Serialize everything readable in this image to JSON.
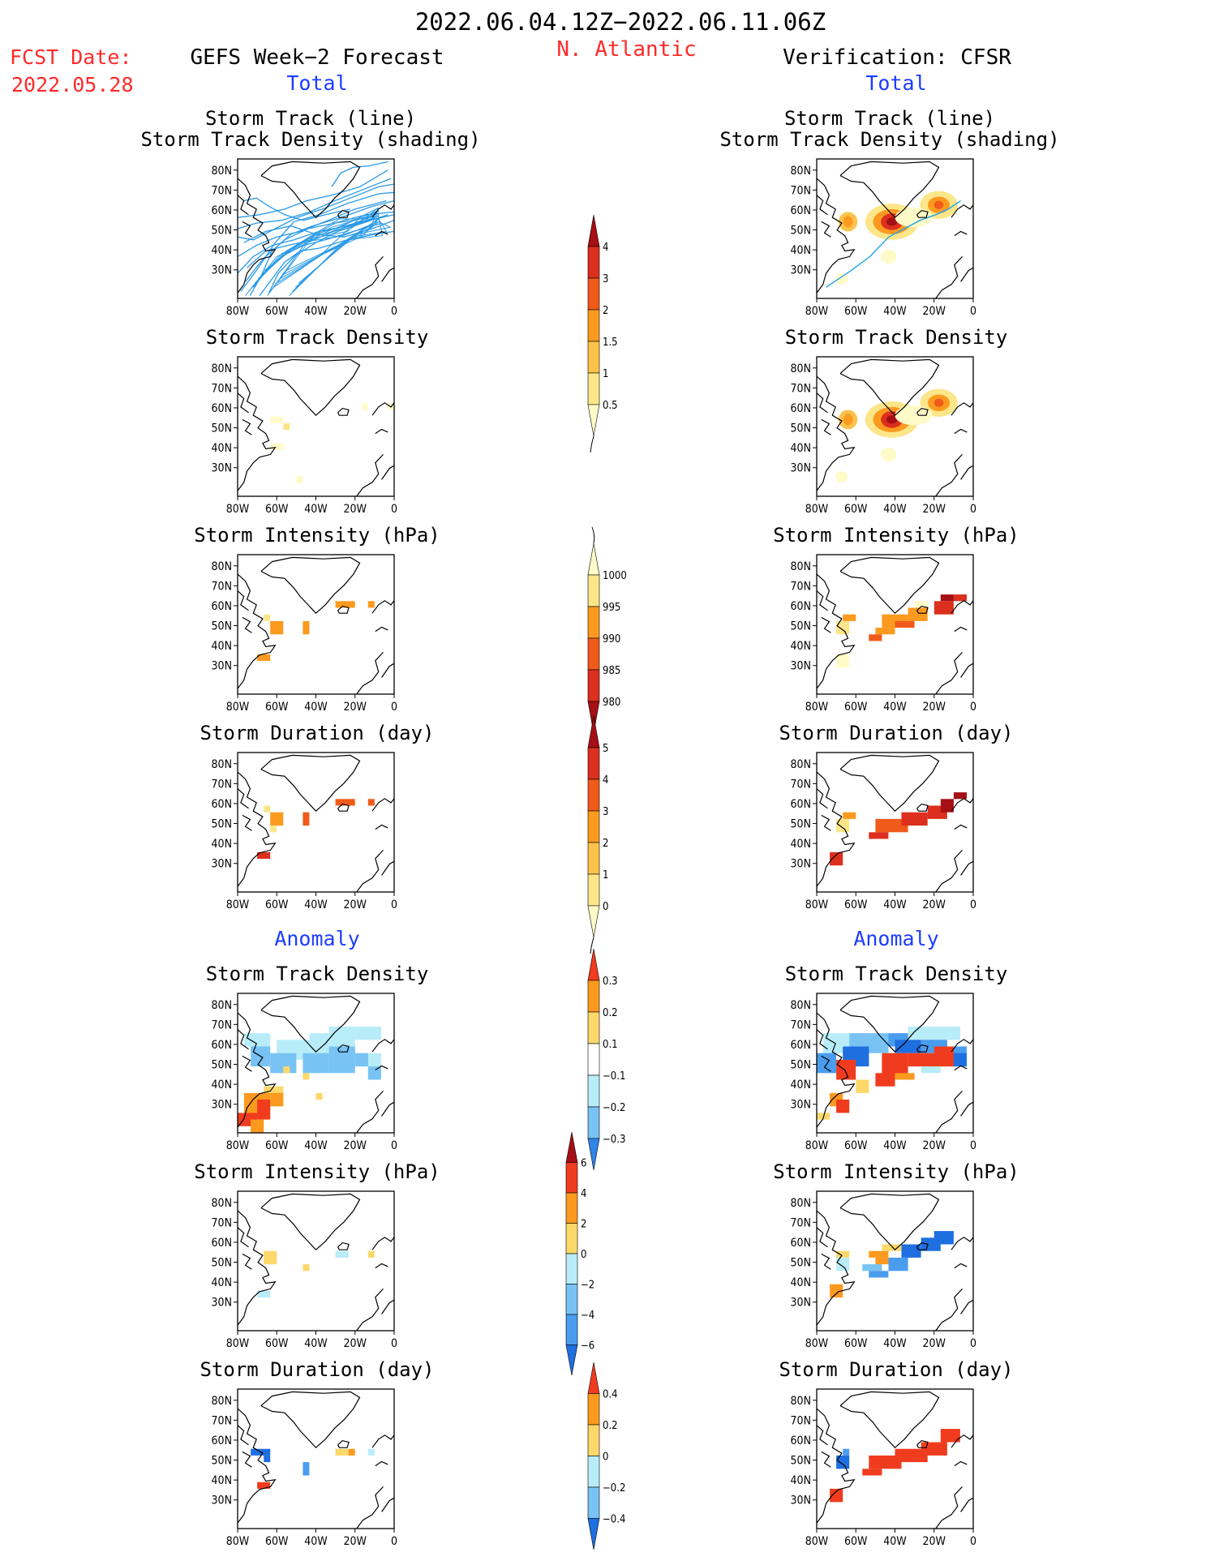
{
  "header": {
    "title": "2022.06.04.12Z−2022.06.11.06Z",
    "region": "N. Atlantic",
    "fcst_date_label": "FCST Date:",
    "fcst_date": "2022.05.28",
    "left_title": "GEFS Week−2 Forecast",
    "right_title": "Verification: CFSR"
  },
  "sections": {
    "total": "Total",
    "anomaly": "Anomaly"
  },
  "panel_titles": {
    "track_line": "Storm Track (line)",
    "track_shading": "Storm Track Density (shading)",
    "density": "Storm Track Density",
    "intensity": "Storm Intensity (hPa)",
    "duration": "Storm Duration (day)"
  },
  "axes": {
    "lat_ticks": [
      "80N",
      "70N",
      "60N",
      "50N",
      "40N",
      "30N"
    ],
    "lon_ticks": [
      "80W",
      "60W",
      "40W",
      "20W",
      "0"
    ]
  },
  "colorbars": {
    "density_total": {
      "labels": [
        "4",
        "3",
        "2",
        "1.5",
        "1",
        "0.5"
      ],
      "colors": [
        "#a50f15",
        "#dc2f1e",
        "#f05a1a",
        "#fb9a1f",
        "#fdc24a",
        "#fde68a",
        "#fffbc8"
      ]
    },
    "intensity_total": {
      "labels": [
        "1000",
        "995",
        "990",
        "985",
        "980"
      ],
      "colors": [
        "#fffbc8",
        "#fde68a",
        "#fb9a1f",
        "#f05a1a",
        "#dc2f1e",
        "#a50f15"
      ]
    },
    "duration_total": {
      "labels": [
        "5",
        "4",
        "3",
        "2",
        "1",
        "0"
      ],
      "colors": [
        "#a50f15",
        "#dc2f1e",
        "#f05a1a",
        "#fb9a1f",
        "#fdc24a",
        "#fde68a",
        "#fffbc8"
      ]
    },
    "density_anom": {
      "labels": [
        "0.3",
        "0.2",
        "0.1",
        "−0.1",
        "−0.2",
        "−0.3"
      ],
      "colors": [
        "#f03c1e",
        "#fb9a1f",
        "#fdd86a",
        "#ffffff",
        "#b8ecf8",
        "#78c3f3",
        "#2f84e8"
      ]
    },
    "intensity_anom": {
      "labels": [
        "6",
        "4",
        "2",
        "0",
        "−2",
        "−4",
        "−6"
      ],
      "colors": [
        "#a50f15",
        "#f03c1e",
        "#fb9a1f",
        "#fdd86a",
        "#b8ecf8",
        "#78c3f3",
        "#4a9cee",
        "#1e6fe0"
      ]
    },
    "duration_anom": {
      "labels": [
        "0.4",
        "0.2",
        "0",
        "−0.2",
        "−0.4"
      ],
      "colors": [
        "#f03c1e",
        "#fb9a1f",
        "#fdd86a",
        "#b8ecf8",
        "#78c3f3",
        "#1e6fe0"
      ]
    }
  }
}
